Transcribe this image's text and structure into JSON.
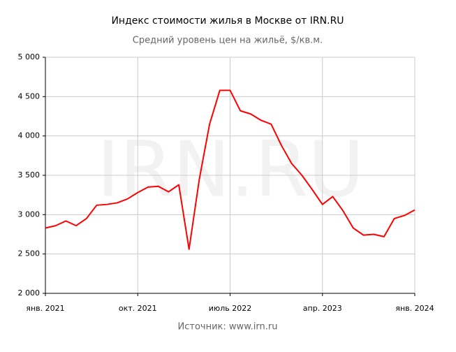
{
  "chart_data": {
    "type": "line",
    "title": "Индекс стоимости жилья в Москве от IRN.RU",
    "subtitle": "Средний уровень цен на жильё, $/кв.м.",
    "source": "Источник: www.irn.ru",
    "watermark": "IRN.RU",
    "x": [
      "2021-01",
      "2021-02",
      "2021-03",
      "2021-04",
      "2021-05",
      "2021-06",
      "2021-07",
      "2021-08",
      "2021-09",
      "2021-10",
      "2021-11",
      "2021-12",
      "2022-01",
      "2022-02",
      "2022-03",
      "2022-04",
      "2022-05",
      "2022-06",
      "2022-07",
      "2022-08",
      "2022-09",
      "2022-10",
      "2022-11",
      "2022-12",
      "2023-01",
      "2023-02",
      "2023-03",
      "2023-04",
      "2023-05",
      "2023-06",
      "2023-07",
      "2023-08",
      "2023-09",
      "2023-10",
      "2023-11",
      "2023-12",
      "2024-01"
    ],
    "series": [
      {
        "name": "Индекс",
        "color": "#ff0000",
        "values": [
          2830,
          2860,
          2920,
          2860,
          2950,
          3120,
          3130,
          3150,
          3200,
          3280,
          3350,
          3360,
          3290,
          3380,
          2560,
          3450,
          4150,
          4580,
          4580,
          4320,
          4280,
          4200,
          4150,
          3880,
          3650,
          3500,
          3320,
          3130,
          3230,
          3050,
          2830,
          2740,
          2750,
          2720,
          2950,
          2990,
          3060
        ]
      }
    ],
    "xlim": [
      "2021-01",
      "2024-01"
    ],
    "xticks": [
      {
        "value": "2021-01",
        "label": "янв. 2021"
      },
      {
        "value": "2021-10",
        "label": "окт. 2021"
      },
      {
        "value": "2022-07",
        "label": "июль 2022"
      },
      {
        "value": "2023-04",
        "label": "апр. 2023"
      },
      {
        "value": "2024-01",
        "label": "янв. 2024"
      }
    ],
    "ylim": [
      2000,
      5000
    ],
    "yticks": [
      {
        "value": 2000,
        "label": "2 000"
      },
      {
        "value": 2500,
        "label": "2 500"
      },
      {
        "value": 3000,
        "label": "3 000"
      },
      {
        "value": 3500,
        "label": "3 500"
      },
      {
        "value": 4000,
        "label": "4 000"
      },
      {
        "value": 4500,
        "label": "4 500"
      },
      {
        "value": 5000,
        "label": "5 000"
      }
    ],
    "grid": true
  }
}
